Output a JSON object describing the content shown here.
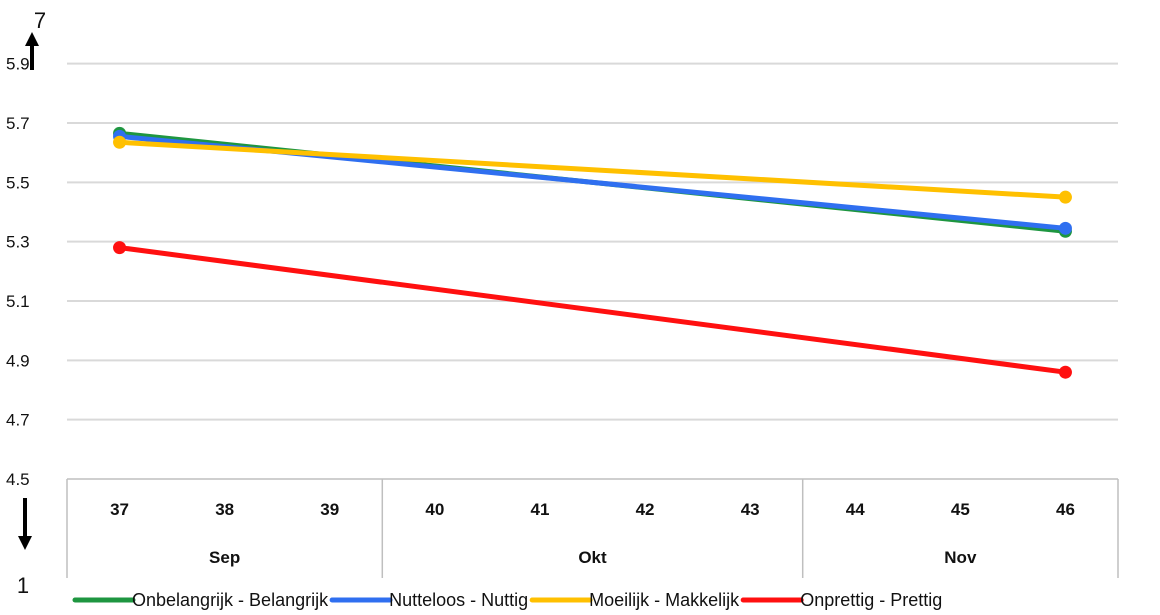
{
  "chart_data": {
    "type": "line",
    "x": [
      "37",
      "38",
      "39",
      "40",
      "41",
      "42",
      "43",
      "44",
      "45",
      "46"
    ],
    "groups": [
      {
        "label": "Sep",
        "from": "37",
        "to": "39"
      },
      {
        "label": "Okt",
        "from": "40",
        "to": "43"
      },
      {
        "label": "Nov",
        "from": "44",
        "to": "46"
      }
    ],
    "ylim": [
      4.5,
      6.0
    ],
    "yticks": [
      "4.5",
      "4.7",
      "4.9",
      "5.1",
      "5.3",
      "5.5",
      "5.7",
      "5.9"
    ],
    "axis_top_label": "7",
    "axis_bottom_label": "1",
    "grid": true,
    "legend_position": "bottom",
    "series": [
      {
        "name": "Onbelangrijk - Belangrijk",
        "color": "#1e9640",
        "points": [
          {
            "x": "37",
            "y": 5.665
          },
          {
            "x": "46",
            "y": 5.335
          }
        ]
      },
      {
        "name": "Nutteloos - Nuttig",
        "color": "#2f6ff0",
        "points": [
          {
            "x": "37",
            "y": 5.655
          },
          {
            "x": "46",
            "y": 5.345
          }
        ]
      },
      {
        "name": "Moeilijk - Makkelijk",
        "color": "#ffc000",
        "points": [
          {
            "x": "37",
            "y": 5.635
          },
          {
            "x": "46",
            "y": 5.45
          }
        ]
      },
      {
        "name": "Onprettig - Prettig",
        "color": "#ff1010",
        "points": [
          {
            "x": "37",
            "y": 5.28
          },
          {
            "x": "46",
            "y": 4.86
          }
        ]
      }
    ]
  }
}
